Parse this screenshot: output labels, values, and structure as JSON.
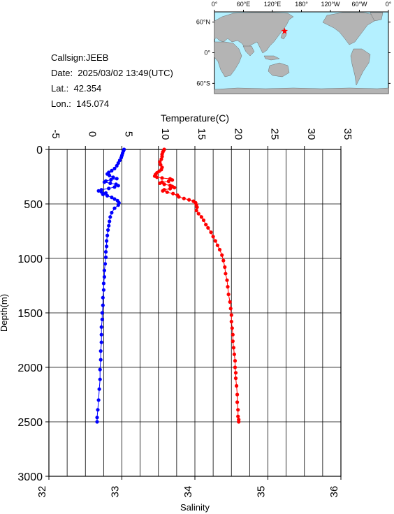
{
  "meta": {
    "callsign": "Callsign:JEEB",
    "date": "Date:  2025/03/02 13:49(UTC)",
    "lat": "Lat.:  42.354",
    "lon": "Lon.:  145.074"
  },
  "map": {
    "lon_labels": [
      "0°",
      "60°E",
      "120°E",
      "180°",
      "120°W",
      "60°W",
      "0°"
    ],
    "lat_labels": [
      "60°N",
      "0°",
      "60°S"
    ],
    "station": {
      "lat": 42.354,
      "lon": 145.074
    },
    "colors": {
      "ocean": "#b4f0ff",
      "land": "#b4b4b4",
      "marker": "#ff0000"
    }
  },
  "chart_data": {
    "type": "scatter",
    "ylabel": "Depth(m)",
    "ylim": [
      0,
      3000
    ],
    "y_inverted": true,
    "yticks": [
      0,
      500,
      1000,
      1500,
      2000,
      2500,
      3000
    ],
    "grid": true,
    "top_axis": {
      "label": "Temperature(C)",
      "lim": [
        -5,
        35
      ],
      "ticks": [
        -5,
        0,
        5,
        10,
        15,
        20,
        25,
        30,
        35
      ]
    },
    "bottom_axis": {
      "label": "Salinity",
      "lim": [
        32,
        36
      ],
      "ticks": [
        32,
        33,
        34,
        35,
        36
      ]
    },
    "series": [
      {
        "axis": "top",
        "color": "#ff0000",
        "points": [
          [
            10.8,
            0
          ],
          [
            10.7,
            10
          ],
          [
            10.6,
            25
          ],
          [
            10.5,
            45
          ],
          [
            10.5,
            65
          ],
          [
            10.4,
            90
          ],
          [
            10.2,
            115
          ],
          [
            10.3,
            140
          ],
          [
            10.5,
            165
          ],
          [
            10.4,
            185
          ],
          [
            10.1,
            200
          ],
          [
            9.8,
            215
          ],
          [
            9.6,
            230
          ],
          [
            9.5,
            245
          ],
          [
            9.8,
            255
          ],
          [
            10.5,
            262
          ],
          [
            11.6,
            270
          ],
          [
            11.9,
            280
          ],
          [
            11.4,
            292
          ],
          [
            10.5,
            300
          ],
          [
            10.2,
            310
          ],
          [
            10.8,
            320
          ],
          [
            11.6,
            330
          ],
          [
            11.9,
            340
          ],
          [
            12.2,
            350
          ],
          [
            11.6,
            360
          ],
          [
            10.8,
            370
          ],
          [
            10.6,
            380
          ],
          [
            11.2,
            392
          ],
          [
            12.0,
            405
          ],
          [
            12.6,
            420
          ],
          [
            12.8,
            435
          ],
          [
            13.5,
            450
          ],
          [
            14.2,
            462
          ],
          [
            14.8,
            475
          ],
          [
            15.1,
            490
          ],
          [
            15.2,
            510
          ],
          [
            15.3,
            530
          ],
          [
            15.2,
            560
          ],
          [
            15.5,
            590
          ],
          [
            15.9,
            620
          ],
          [
            16.2,
            650
          ],
          [
            16.5,
            690
          ],
          [
            16.8,
            720
          ],
          [
            17.2,
            760
          ],
          [
            17.5,
            800
          ],
          [
            17.8,
            840
          ],
          [
            18.1,
            880
          ],
          [
            18.4,
            920
          ],
          [
            18.7,
            970
          ],
          [
            18.9,
            1020
          ],
          [
            19.1,
            1080
          ],
          [
            19.2,
            1140
          ],
          [
            19.4,
            1200
          ],
          [
            19.5,
            1260
          ],
          [
            19.6,
            1330
          ],
          [
            19.8,
            1400
          ],
          [
            19.9,
            1460
          ],
          [
            20.0,
            1520
          ],
          [
            20.0,
            1580
          ],
          [
            20.1,
            1640
          ],
          [
            20.2,
            1700
          ],
          [
            20.2,
            1760
          ],
          [
            20.3,
            1820
          ],
          [
            20.4,
            1880
          ],
          [
            20.5,
            1940
          ],
          [
            20.5,
            2000
          ],
          [
            20.6,
            2050
          ],
          [
            20.6,
            2100
          ],
          [
            20.7,
            2170
          ],
          [
            20.8,
            2250
          ],
          [
            20.8,
            2320
          ],
          [
            20.9,
            2390
          ],
          [
            20.9,
            2450
          ],
          [
            21.0,
            2480
          ],
          [
            21.0,
            2500
          ]
        ]
      },
      {
        "axis": "bottom",
        "color": "#0000ff",
        "points": [
          [
            33.03,
            0
          ],
          [
            33.02,
            15
          ],
          [
            33.01,
            35
          ],
          [
            33.0,
            55
          ],
          [
            32.99,
            75
          ],
          [
            32.97,
            100
          ],
          [
            32.95,
            125
          ],
          [
            32.93,
            150
          ],
          [
            32.9,
            175
          ],
          [
            32.86,
            195
          ],
          [
            32.82,
            210
          ],
          [
            32.8,
            225
          ],
          [
            32.83,
            240
          ],
          [
            32.88,
            255
          ],
          [
            32.93,
            268
          ],
          [
            32.85,
            278
          ],
          [
            32.78,
            290
          ],
          [
            32.76,
            300
          ],
          [
            32.84,
            310
          ],
          [
            32.92,
            320
          ],
          [
            32.95,
            332
          ],
          [
            32.9,
            345
          ],
          [
            32.82,
            358
          ],
          [
            32.72,
            370
          ],
          [
            32.68,
            380
          ],
          [
            32.72,
            390
          ],
          [
            32.78,
            400
          ],
          [
            32.74,
            412
          ],
          [
            32.8,
            425
          ],
          [
            32.86,
            440
          ],
          [
            32.9,
            455
          ],
          [
            32.94,
            470
          ],
          [
            32.96,
            490
          ],
          [
            32.95,
            510
          ],
          [
            32.9,
            540
          ],
          [
            32.86,
            580
          ],
          [
            32.84,
            620
          ],
          [
            32.83,
            660
          ],
          [
            32.82,
            700
          ],
          [
            32.81,
            740
          ],
          [
            32.8,
            790
          ],
          [
            32.79,
            840
          ],
          [
            32.79,
            890
          ],
          [
            32.78,
            940
          ],
          [
            32.78,
            990
          ],
          [
            32.77,
            1050
          ],
          [
            32.76,
            1110
          ],
          [
            32.76,
            1170
          ],
          [
            32.75,
            1230
          ],
          [
            32.75,
            1290
          ],
          [
            32.74,
            1360
          ],
          [
            32.74,
            1430
          ],
          [
            32.73,
            1500
          ],
          [
            32.73,
            1560
          ],
          [
            32.72,
            1630
          ],
          [
            32.72,
            1700
          ],
          [
            32.72,
            1770
          ],
          [
            32.71,
            1850
          ],
          [
            32.71,
            1930
          ],
          [
            32.7,
            2020
          ],
          [
            32.7,
            2110
          ],
          [
            32.69,
            2200
          ],
          [
            32.68,
            2300
          ],
          [
            32.67,
            2390
          ],
          [
            32.66,
            2460
          ],
          [
            32.66,
            2500
          ]
        ]
      }
    ]
  }
}
